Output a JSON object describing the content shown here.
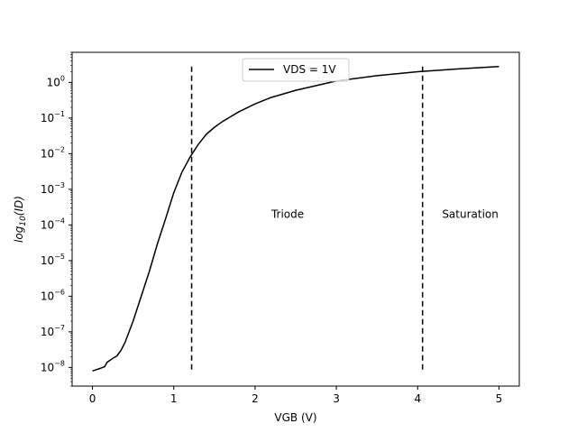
{
  "chart_data": {
    "type": "line",
    "xlabel": "VGB (V)",
    "ylabel": "log10(ID)",
    "ylabel_parts": {
      "base": "log",
      "sub": "10",
      "rest": "(ID)"
    },
    "xlim": [
      -0.25,
      5.25
    ],
    "ylim": [
      3e-09,
      7.0
    ],
    "yscale": "log",
    "x_ticks": [
      0,
      1,
      2,
      3,
      4,
      5
    ],
    "x_tick_labels": [
      "0",
      "1",
      "2",
      "3",
      "4",
      "5"
    ],
    "y_ticks": [
      1e-08,
      1e-07,
      1e-06,
      1e-05,
      0.0001,
      0.001,
      0.01,
      0.1,
      1.0
    ],
    "y_tick_labels": [
      {
        "base": "10",
        "exp": "−8"
      },
      {
        "base": "10",
        "exp": "−7"
      },
      {
        "base": "10",
        "exp": "−6"
      },
      {
        "base": "10",
        "exp": "−5"
      },
      {
        "base": "10",
        "exp": "−4"
      },
      {
        "base": "10",
        "exp": "−3"
      },
      {
        "base": "10",
        "exp": "−2"
      },
      {
        "base": "10",
        "exp": "−1"
      },
      {
        "base": "10",
        "exp": "0"
      }
    ],
    "grid": false,
    "legend_position": "top-center",
    "series": [
      {
        "name": "VDS = 1V",
        "color": "#000000",
        "x": [
          0.0,
          0.1,
          0.15,
          0.18,
          0.25,
          0.3,
          0.35,
          0.4,
          0.5,
          0.6,
          0.7,
          0.8,
          0.9,
          1.0,
          1.1,
          1.2,
          1.3,
          1.4,
          1.5,
          1.6,
          1.8,
          2.0,
          2.2,
          2.5,
          3.0,
          3.5,
          4.0,
          4.5,
          5.0
        ],
        "y": [
          8e-09,
          9.5e-09,
          1.05e-08,
          1.4e-08,
          1.8e-08,
          2.1e-08,
          3e-08,
          5e-08,
          2e-07,
          1e-06,
          5e-06,
          3e-05,
          0.00015,
          0.0008,
          0.003,
          0.008,
          0.018,
          0.035,
          0.055,
          0.08,
          0.15,
          0.25,
          0.38,
          0.6,
          1.1,
          1.55,
          2.0,
          2.4,
          2.8
        ]
      }
    ],
    "vlines": [
      {
        "x": 1.22,
        "y_range": [
          8e-09,
          2.8
        ],
        "style": "dashed",
        "color": "#000000"
      },
      {
        "x": 4.06,
        "y_range": [
          8e-09,
          2.8
        ],
        "style": "dashed",
        "color": "#000000"
      }
    ],
    "annotations": [
      {
        "text": "Triode",
        "x": 2.2,
        "y": 0.00016
      },
      {
        "text": "Saturation",
        "x": 4.3,
        "y": 0.00016
      }
    ]
  }
}
